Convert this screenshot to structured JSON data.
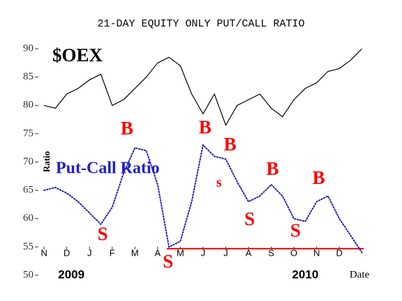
{
  "chart_data": {
    "type": "line",
    "title": "21-DAY EQUITY ONLY PUT/CALL RATIO",
    "y_label": "Ratio",
    "x_label": "Date",
    "x": [
      0,
      0.5,
      1,
      1.5,
      2,
      2.5,
      3,
      3.5,
      4,
      4.5,
      5,
      5.5,
      6,
      6.5,
      7,
      7.5,
      8,
      8.5,
      9,
      9.5,
      10,
      10.5,
      11,
      11.5,
      12,
      12.5,
      13,
      13.5,
      14
    ],
    "series": [
      {
        "name": "$OEX",
        "color": "#000000",
        "style": "solid",
        "values": [
          80,
          79.5,
          82,
          83,
          84.5,
          85.5,
          80,
          81,
          83,
          85,
          87.5,
          88.5,
          87,
          82,
          78.5,
          82,
          76.5,
          80,
          81,
          82,
          79.5,
          78,
          81,
          83,
          84,
          86,
          86.5,
          88,
          90
        ]
      },
      {
        "name": "Put-Call Ratio",
        "color": "#2020c8",
        "style": "dotted",
        "values": [
          65,
          65.5,
          64.5,
          63,
          61,
          59,
          62,
          68,
          72.5,
          72,
          66,
          55,
          56,
          63,
          73,
          71,
          70.5,
          66.5,
          63,
          64,
          66,
          64,
          60,
          59.5,
          63,
          64,
          60,
          57,
          54
        ]
      }
    ],
    "xlim": [
      -0.25,
      14.1
    ],
    "ylim": [
      50,
      90
    ],
    "yticks": [
      50,
      55,
      60,
      65,
      70,
      75,
      80,
      85,
      90
    ],
    "xticks": [
      {
        "value": 0,
        "label": "N"
      },
      {
        "value": 1,
        "label": "D"
      },
      {
        "value": 2,
        "label": "J"
      },
      {
        "value": 3,
        "label": "F"
      },
      {
        "value": 4,
        "label": "M"
      },
      {
        "value": 5,
        "label": "A"
      },
      {
        "value": 6,
        "label": "M"
      },
      {
        "value": 7,
        "label": "J"
      },
      {
        "value": 8,
        "label": "J"
      },
      {
        "value": 9,
        "label": "A"
      },
      {
        "value": 10,
        "label": "S"
      },
      {
        "value": 11,
        "label": "O"
      },
      {
        "value": 12,
        "label": "N"
      },
      {
        "value": 13,
        "label": "D"
      }
    ],
    "year_labels": [
      {
        "value": 1.2,
        "label": "2009"
      },
      {
        "value": 11.5,
        "label": "2010"
      }
    ],
    "reference_line": {
      "y": 54.7,
      "x_start": 5.4,
      "x_end": 14.08,
      "color": "#ff0000"
    },
    "annotations": [
      {
        "text": "B",
        "x": 3.65,
        "y": 75.6,
        "color": "#ff0000"
      },
      {
        "text": "S",
        "x": 2.58,
        "y": 57,
        "color": "#ff0000"
      },
      {
        "text": "S",
        "x": 5.46,
        "y": 52.1,
        "color": "#ff0000"
      },
      {
        "text": "B",
        "x": 7.09,
        "y": 75.8,
        "color": "#ff0000"
      },
      {
        "text": "B",
        "x": 8.19,
        "y": 72.8,
        "color": "#ff0000"
      },
      {
        "text": "s",
        "x": 7.7,
        "y": 66.2,
        "color": "#ff0000"
      },
      {
        "text": "S",
        "x": 9.05,
        "y": 59.6,
        "color": "#ff0000"
      },
      {
        "text": "B",
        "x": 10.06,
        "y": 68.5,
        "color": "#ff0000"
      },
      {
        "text": "S",
        "x": 11.07,
        "y": 57.6,
        "color": "#ff0000"
      },
      {
        "text": "B",
        "x": 12.09,
        "y": 66.9,
        "color": "#ff0000"
      }
    ]
  }
}
